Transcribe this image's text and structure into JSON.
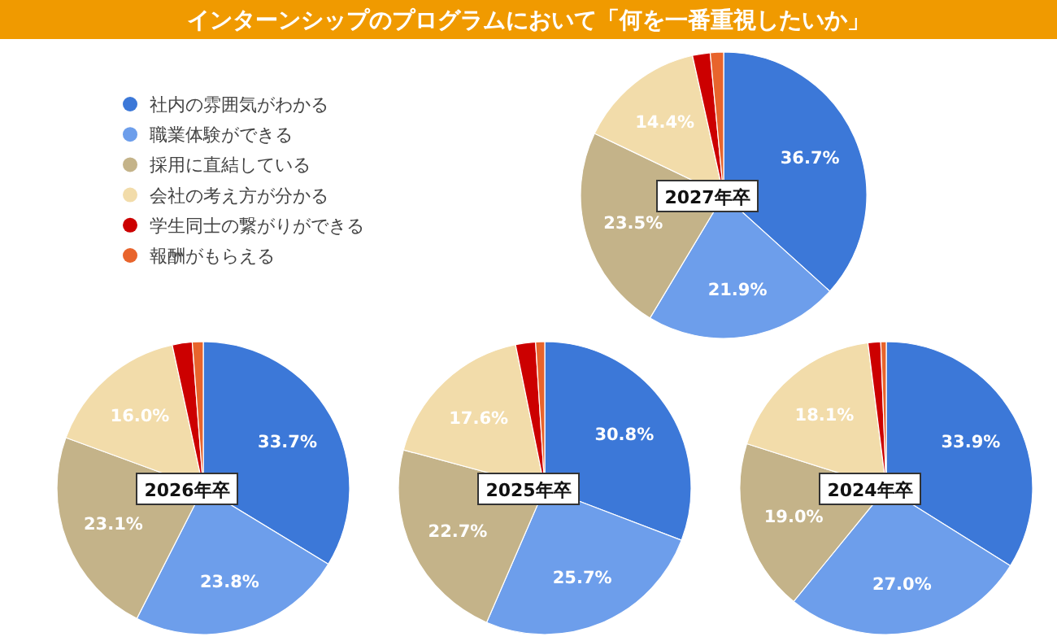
{
  "chart_data": [
    {
      "type": "pie",
      "title": "2027年卒",
      "subtitle": "インターンシップのプログラムにおいて「何を一番重視したいか」",
      "legend": "left",
      "categories": [
        "社内の雰囲気がわかる",
        "職業体験ができる",
        "採用に直結している",
        "会社の考え方が分かる",
        "学生同士の繋がりができる",
        "報酬がもらえる"
      ],
      "values": [
        36.7,
        21.9,
        23.5,
        14.4,
        2.0,
        1.5
      ],
      "value_labels": [
        "36.7%",
        "21.9%",
        "23.5%",
        "14.4%",
        null,
        null
      ],
      "colors": [
        "#3c78d8",
        "#6d9eeb",
        "#c4b389",
        "#f2dcaa",
        "#cc0000",
        "#e8642c"
      ]
    },
    {
      "type": "pie",
      "title": "2026年卒",
      "categories": [
        null,
        null,
        null,
        null,
        null,
        null
      ],
      "values": [
        33.7,
        23.8,
        23.1,
        16.0,
        2.2,
        1.2
      ],
      "value_labels": [
        "33.7%",
        "23.8%",
        "23.1%",
        "16.0%",
        null,
        null
      ],
      "colors": [
        "#3c78d8",
        "#6d9eeb",
        "#c4b389",
        "#f2dcaa",
        "#cc0000",
        "#e8642c"
      ]
    },
    {
      "type": "pie",
      "title": "2025年卒",
      "categories": [
        null,
        null,
        null,
        null,
        null,
        null
      ],
      "values": [
        30.8,
        25.7,
        22.7,
        17.6,
        2.2,
        1.0
      ],
      "value_labels": [
        "30.8%",
        "25.7%",
        "22.7%",
        "17.6%",
        null,
        null
      ],
      "colors": [
        "#3c78d8",
        "#6d9eeb",
        "#c4b389",
        "#f2dcaa",
        "#cc0000",
        "#e8642c"
      ]
    },
    {
      "type": "pie",
      "title": "2024年卒",
      "categories": [
        null,
        null,
        null,
        null,
        null,
        null
      ],
      "values": [
        33.9,
        27.0,
        19.0,
        18.1,
        1.4,
        0.6
      ],
      "value_labels": [
        "33.9%",
        "27.0%",
        "19.0%",
        "18.1%",
        null,
        null
      ],
      "colors": [
        "#3c78d8",
        "#6d9eeb",
        "#c4b389",
        "#f2dcaa",
        "#cc0000",
        "#e8642c"
      ]
    }
  ]
}
